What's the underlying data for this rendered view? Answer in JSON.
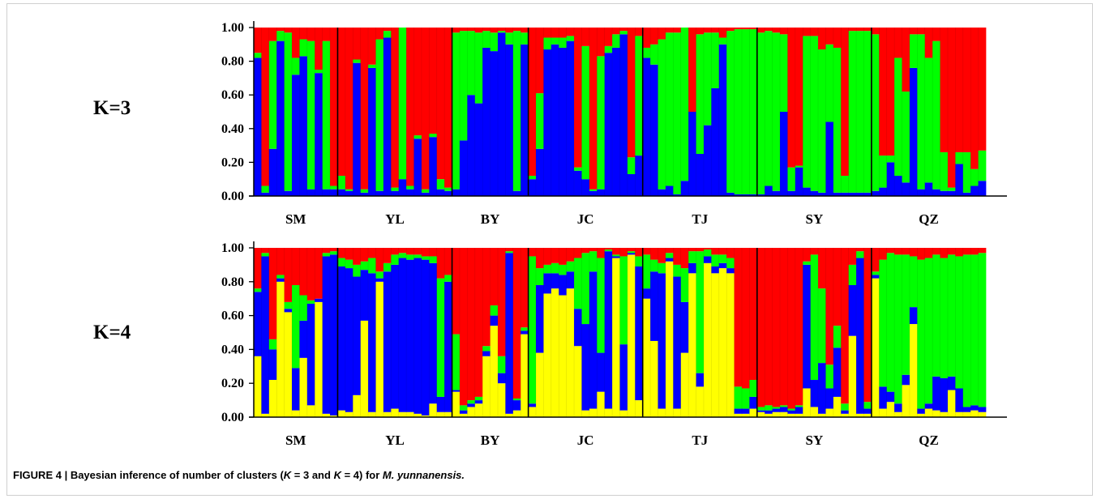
{
  "caption": {
    "figure_label": "FIGURE 4 |",
    "text_pre": " Bayesian inference of number of clusters (",
    "k_symbol_1": "K",
    "text_mid1": " = 3 and ",
    "k_symbol_2": "K",
    "text_mid2": " = 4) for ",
    "species": "M. yunnanensis.",
    "text_post": ""
  },
  "colors": {
    "red": "#ff0000",
    "green": "#00ff00",
    "blue": "#0000ff",
    "yellow": "#ffff00"
  },
  "chart_data": [
    {
      "type": "bar",
      "stacked": true,
      "panel_label": "K=3",
      "ylim": [
        0,
        1
      ],
      "y_ticks": [
        "0.00",
        "0.20",
        "0.40",
        "0.60",
        "0.80",
        "1.00"
      ],
      "groups": [
        "SM",
        "YL",
        "BY",
        "JC",
        "TJ",
        "SY",
        "QZ"
      ],
      "group_sizes": [
        11,
        15,
        10,
        15,
        15,
        15,
        15
      ],
      "cluster_order": [
        "blue",
        "green",
        "red"
      ],
      "individuals": [
        [
          0.82,
          0.03,
          0.15
        ],
        [
          0.02,
          0.04,
          0.94
        ],
        [
          0.28,
          0.64,
          0.08
        ],
        [
          0.92,
          0.06,
          0.02
        ],
        [
          0.03,
          0.94,
          0.03
        ],
        [
          0.72,
          0.1,
          0.18
        ],
        [
          0.83,
          0.1,
          0.07
        ],
        [
          0.04,
          0.88,
          0.08
        ],
        [
          0.73,
          0.02,
          0.25
        ],
        [
          0.04,
          0.88,
          0.08
        ],
        [
          0.04,
          0.02,
          0.94
        ],
        [
          0.04,
          0.08,
          0.88
        ],
        [
          0.03,
          0.01,
          0.96
        ],
        [
          0.79,
          0.02,
          0.19
        ],
        [
          0.02,
          0.02,
          0.96
        ],
        [
          0.76,
          0.02,
          0.22
        ],
        [
          0.03,
          0.9,
          0.07
        ],
        [
          0.94,
          0.04,
          0.02
        ],
        [
          0.03,
          0.02,
          0.95
        ],
        [
          0.1,
          0.9,
          0.0
        ],
        [
          0.04,
          0.02,
          0.94
        ],
        [
          0.34,
          0.02,
          0.64
        ],
        [
          0.02,
          0.02,
          0.96
        ],
        [
          0.35,
          0.02,
          0.63
        ],
        [
          0.04,
          0.06,
          0.9
        ],
        [
          0.03,
          0.02,
          0.95
        ],
        [
          0.04,
          0.93,
          0.03
        ],
        [
          0.33,
          0.65,
          0.02
        ],
        [
          0.6,
          0.38,
          0.02
        ],
        [
          0.55,
          0.42,
          0.03
        ],
        [
          0.88,
          0.1,
          0.02
        ],
        [
          0.86,
          0.11,
          0.03
        ],
        [
          0.97,
          0.01,
          0.02
        ],
        [
          0.9,
          0.07,
          0.03
        ],
        [
          0.03,
          0.95,
          0.02
        ],
        [
          0.9,
          0.07,
          0.03
        ],
        [
          0.1,
          0.02,
          0.88
        ],
        [
          0.28,
          0.33,
          0.39
        ],
        [
          0.87,
          0.07,
          0.06
        ],
        [
          0.9,
          0.04,
          0.06
        ],
        [
          0.88,
          0.06,
          0.06
        ],
        [
          0.92,
          0.03,
          0.05
        ],
        [
          0.15,
          0.02,
          0.83
        ],
        [
          0.1,
          0.79,
          0.11
        ],
        [
          0.03,
          0.01,
          0.96
        ],
        [
          0.04,
          0.79,
          0.17
        ],
        [
          0.85,
          0.04,
          0.11
        ],
        [
          0.88,
          0.08,
          0.04
        ],
        [
          0.96,
          0.02,
          0.02
        ],
        [
          0.13,
          0.1,
          0.77
        ],
        [
          0.24,
          0.71,
          0.05
        ],
        [
          0.82,
          0.06,
          0.12
        ],
        [
          0.78,
          0.12,
          0.1
        ],
        [
          0.04,
          0.89,
          0.07
        ],
        [
          0.06,
          0.91,
          0.03
        ],
        [
          0.01,
          0.96,
          0.03
        ],
        [
          0.09,
          0.91,
          0.0
        ],
        [
          0.5,
          0.0,
          0.5
        ],
        [
          0.25,
          0.71,
          0.04
        ],
        [
          0.42,
          0.55,
          0.03
        ],
        [
          0.64,
          0.33,
          0.03
        ],
        [
          0.9,
          0.04,
          0.06
        ],
        [
          0.02,
          0.96,
          0.02
        ],
        [
          0.01,
          0.98,
          0.01
        ],
        [
          0.01,
          0.98,
          0.01
        ],
        [
          0.01,
          0.98,
          0.01
        ],
        [
          0.01,
          0.96,
          0.03
        ],
        [
          0.06,
          0.92,
          0.02
        ],
        [
          0.03,
          0.94,
          0.03
        ],
        [
          0.5,
          0.46,
          0.04
        ],
        [
          0.03,
          0.14,
          0.83
        ],
        [
          0.17,
          0.01,
          0.82
        ],
        [
          0.05,
          0.9,
          0.05
        ],
        [
          0.03,
          0.92,
          0.05
        ],
        [
          0.02,
          0.85,
          0.13
        ],
        [
          0.44,
          0.46,
          0.1
        ],
        [
          0.02,
          0.86,
          0.12
        ],
        [
          0.02,
          0.1,
          0.88
        ],
        [
          0.02,
          0.96,
          0.02
        ],
        [
          0.02,
          0.96,
          0.02
        ],
        [
          0.02,
          0.96,
          0.02
        ],
        [
          0.03,
          0.93,
          0.04
        ],
        [
          0.05,
          0.19,
          0.76
        ],
        [
          0.2,
          0.04,
          0.76
        ],
        [
          0.12,
          0.7,
          0.18
        ],
        [
          0.08,
          0.54,
          0.38
        ],
        [
          0.76,
          0.2,
          0.04
        ],
        [
          0.04,
          0.92,
          0.04
        ],
        [
          0.08,
          0.74,
          0.18
        ],
        [
          0.04,
          0.88,
          0.08
        ],
        [
          0.03,
          0.23,
          0.74
        ],
        [
          0.03,
          0.02,
          0.95
        ],
        [
          0.19,
          0.07,
          0.74
        ],
        [
          0.02,
          0.24,
          0.74
        ],
        [
          0.06,
          0.1,
          0.84
        ],
        [
          0.09,
          0.18,
          0.73
        ]
      ]
    },
    {
      "type": "bar",
      "stacked": true,
      "panel_label": "K=4",
      "ylim": [
        0,
        1
      ],
      "y_ticks": [
        "0.00",
        "0.20",
        "0.40",
        "0.60",
        "0.80",
        "1.00"
      ],
      "groups": [
        "SM",
        "YL",
        "BY",
        "JC",
        "TJ",
        "SY",
        "QZ"
      ],
      "group_sizes": [
        11,
        15,
        10,
        15,
        15,
        15,
        15
      ],
      "cluster_order": [
        "yellow",
        "blue",
        "green",
        "red"
      ],
      "individuals": [
        [
          0.36,
          0.38,
          0.02,
          0.24
        ],
        [
          0.02,
          0.93,
          0.02,
          0.03
        ],
        [
          0.22,
          0.18,
          0.06,
          0.54
        ],
        [
          0.8,
          0.02,
          0.02,
          0.16
        ],
        [
          0.62,
          0.02,
          0.04,
          0.32
        ],
        [
          0.04,
          0.25,
          0.49,
          0.22
        ],
        [
          0.35,
          0.22,
          0.15,
          0.28
        ],
        [
          0.07,
          0.6,
          0.02,
          0.31
        ],
        [
          0.68,
          0.02,
          0.0,
          0.3
        ],
        [
          0.02,
          0.93,
          0.02,
          0.03
        ],
        [
          0.01,
          0.95,
          0.02,
          0.02
        ],
        [
          0.04,
          0.85,
          0.05,
          0.06
        ],
        [
          0.03,
          0.85,
          0.05,
          0.07
        ],
        [
          0.13,
          0.7,
          0.07,
          0.1
        ],
        [
          0.57,
          0.3,
          0.05,
          0.08
        ],
        [
          0.03,
          0.82,
          0.09,
          0.06
        ],
        [
          0.8,
          0.02,
          0.04,
          0.14
        ],
        [
          0.03,
          0.83,
          0.05,
          0.09
        ],
        [
          0.05,
          0.85,
          0.06,
          0.04
        ],
        [
          0.03,
          0.91,
          0.03,
          0.03
        ],
        [
          0.03,
          0.9,
          0.03,
          0.04
        ],
        [
          0.02,
          0.92,
          0.02,
          0.04
        ],
        [
          0.01,
          0.92,
          0.02,
          0.05
        ],
        [
          0.08,
          0.83,
          0.04,
          0.05
        ],
        [
          0.03,
          0.09,
          0.7,
          0.18
        ],
        [
          0.03,
          0.77,
          0.04,
          0.16
        ],
        [
          0.15,
          0.01,
          0.33,
          0.51
        ],
        [
          0.02,
          0.02,
          0.03,
          0.93
        ],
        [
          0.06,
          0.02,
          0.02,
          0.9
        ],
        [
          0.08,
          0.02,
          0.02,
          0.88
        ],
        [
          0.36,
          0.03,
          0.03,
          0.58
        ],
        [
          0.54,
          0.06,
          0.06,
          0.34
        ],
        [
          0.2,
          0.06,
          0.1,
          0.64
        ],
        [
          0.02,
          0.95,
          0.01,
          0.02
        ],
        [
          0.04,
          0.06,
          0.01,
          0.89
        ],
        [
          0.49,
          0.02,
          0.02,
          0.47
        ],
        [
          0.06,
          0.02,
          0.87,
          0.05
        ],
        [
          0.38,
          0.4,
          0.1,
          0.12
        ],
        [
          0.73,
          0.12,
          0.05,
          0.1
        ],
        [
          0.76,
          0.09,
          0.06,
          0.09
        ],
        [
          0.72,
          0.12,
          0.06,
          0.1
        ],
        [
          0.76,
          0.1,
          0.06,
          0.08
        ],
        [
          0.42,
          0.22,
          0.3,
          0.06
        ],
        [
          0.04,
          0.51,
          0.42,
          0.03
        ],
        [
          0.05,
          0.81,
          0.12,
          0.02
        ],
        [
          0.15,
          0.23,
          0.56,
          0.06
        ],
        [
          0.05,
          0.93,
          0.01,
          0.01
        ],
        [
          0.94,
          0.01,
          0.01,
          0.04
        ],
        [
          0.04,
          0.39,
          0.52,
          0.05
        ],
        [
          0.96,
          0.01,
          0.01,
          0.02
        ],
        [
          0.1,
          0.79,
          0.06,
          0.05
        ],
        [
          0.7,
          0.06,
          0.2,
          0.04
        ],
        [
          0.45,
          0.41,
          0.07,
          0.07
        ],
        [
          0.05,
          0.8,
          0.06,
          0.09
        ],
        [
          0.92,
          0.02,
          0.03,
          0.03
        ],
        [
          0.05,
          0.78,
          0.07,
          0.1
        ],
        [
          0.38,
          0.3,
          0.2,
          0.12
        ],
        [
          0.85,
          0.06,
          0.07,
          0.02
        ],
        [
          0.18,
          0.08,
          0.72,
          0.02
        ],
        [
          0.91,
          0.04,
          0.04,
          0.01
        ],
        [
          0.85,
          0.04,
          0.07,
          0.04
        ],
        [
          0.88,
          0.03,
          0.05,
          0.04
        ],
        [
          0.85,
          0.03,
          0.06,
          0.06
        ],
        [
          0.02,
          0.03,
          0.13,
          0.82
        ],
        [
          0.02,
          0.03,
          0.12,
          0.83
        ],
        [
          0.05,
          0.07,
          0.1,
          0.78
        ],
        [
          0.03,
          0.01,
          0.02,
          0.94
        ],
        [
          0.02,
          0.02,
          0.03,
          0.93
        ],
        [
          0.03,
          0.02,
          0.01,
          0.94
        ],
        [
          0.03,
          0.03,
          0.01,
          0.93
        ],
        [
          0.02,
          0.02,
          0.01,
          0.95
        ],
        [
          0.02,
          0.04,
          0.01,
          0.93
        ],
        [
          0.17,
          0.73,
          0.02,
          0.08
        ],
        [
          0.06,
          0.16,
          0.74,
          0.04
        ],
        [
          0.02,
          0.3,
          0.44,
          0.24
        ],
        [
          0.05,
          0.12,
          0.14,
          0.69
        ],
        [
          0.12,
          0.29,
          0.13,
          0.46
        ],
        [
          0.02,
          0.02,
          0.04,
          0.92
        ],
        [
          0.48,
          0.3,
          0.12,
          0.1
        ],
        [
          0.02,
          0.92,
          0.04,
          0.02
        ],
        [
          0.02,
          0.03,
          0.04,
          0.91
        ],
        [
          0.82,
          0.02,
          0.02,
          0.14
        ],
        [
          0.05,
          0.13,
          0.75,
          0.07
        ],
        [
          0.09,
          0.06,
          0.82,
          0.03
        ],
        [
          0.03,
          0.05,
          0.88,
          0.04
        ],
        [
          0.19,
          0.06,
          0.71,
          0.04
        ],
        [
          0.55,
          0.1,
          0.3,
          0.05
        ],
        [
          0.02,
          0.03,
          0.88,
          0.07
        ],
        [
          0.05,
          0.03,
          0.86,
          0.06
        ],
        [
          0.04,
          0.2,
          0.72,
          0.04
        ],
        [
          0.03,
          0.2,
          0.71,
          0.06
        ],
        [
          0.16,
          0.08,
          0.72,
          0.04
        ],
        [
          0.03,
          0.14,
          0.78,
          0.05
        ],
        [
          0.03,
          0.03,
          0.9,
          0.04
        ],
        [
          0.04,
          0.03,
          0.89,
          0.04
        ],
        [
          0.03,
          0.03,
          0.91,
          0.03
        ]
      ]
    }
  ]
}
